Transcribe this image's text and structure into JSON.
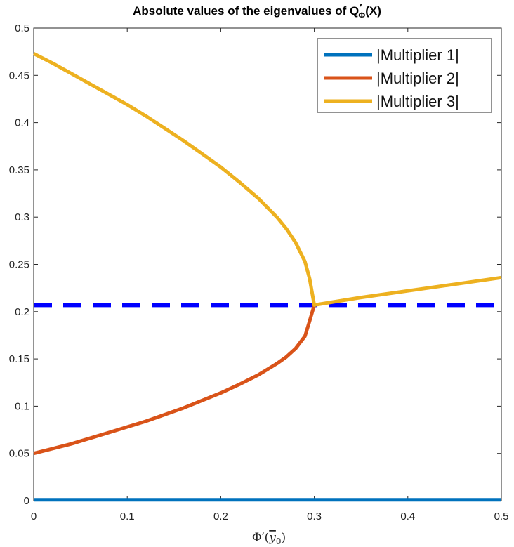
{
  "chart_data": {
    "type": "line",
    "title_main": "Absolute values of the eigenvalues of Q",
    "title_sup": "′",
    "title_sub": "Φ",
    "title_tail": "(X)",
    "xlabel_main": "Φ′(",
    "xlabel_over": "y",
    "xlabel_sub": "0",
    "xlabel_tail": ")",
    "xlim": [
      0,
      0.5
    ],
    "ylim": [
      0,
      0.5
    ],
    "xticks": [
      0,
      0.1,
      0.2,
      0.3,
      0.4,
      0.5
    ],
    "xtick_labels": [
      "0",
      "0.1",
      "0.2",
      "0.3",
      "0.4",
      "0.5"
    ],
    "yticks": [
      0,
      0.05,
      0.1,
      0.15,
      0.2,
      0.25,
      0.3,
      0.35,
      0.4,
      0.45,
      0.5
    ],
    "ytick_labels": [
      "0",
      "0.05",
      "0.1",
      "0.15",
      "0.2",
      "0.25",
      "0.3",
      "0.35",
      "0.4",
      "0.45",
      "0.5"
    ],
    "grid": false,
    "legend_position": "top-right",
    "series": [
      {
        "name": "|Multiplier 1|",
        "color": "#0072BD",
        "x": [
          0,
          0.5
        ],
        "y": [
          0.001,
          0.001
        ]
      },
      {
        "name": "|Multiplier 2|",
        "color": "#D95319",
        "x": [
          0,
          0.02,
          0.04,
          0.06,
          0.08,
          0.1,
          0.12,
          0.14,
          0.16,
          0.18,
          0.2,
          0.22,
          0.24,
          0.26,
          0.27,
          0.28,
          0.29,
          0.295,
          0.3
        ],
        "y": [
          0.05,
          0.055,
          0.06,
          0.066,
          0.072,
          0.078,
          0.084,
          0.091,
          0.098,
          0.106,
          0.114,
          0.123,
          0.133,
          0.145,
          0.152,
          0.161,
          0.174,
          0.19,
          0.207
        ]
      },
      {
        "name": "|Multiplier 3|",
        "color": "#EDB120",
        "x": [
          0,
          0.02,
          0.04,
          0.06,
          0.08,
          0.1,
          0.12,
          0.14,
          0.16,
          0.18,
          0.2,
          0.22,
          0.24,
          0.26,
          0.27,
          0.28,
          0.29,
          0.295,
          0.3,
          0.35,
          0.4,
          0.45,
          0.5
        ],
        "y": [
          0.473,
          0.463,
          0.452,
          0.441,
          0.43,
          0.419,
          0.407,
          0.394,
          0.381,
          0.367,
          0.353,
          0.337,
          0.32,
          0.3,
          0.288,
          0.273,
          0.253,
          0.235,
          0.207,
          0.215,
          0.222,
          0.229,
          0.236
        ]
      }
    ],
    "reference_line": {
      "color": "#0000FF",
      "style": "dashed",
      "y": 0.207
    }
  }
}
